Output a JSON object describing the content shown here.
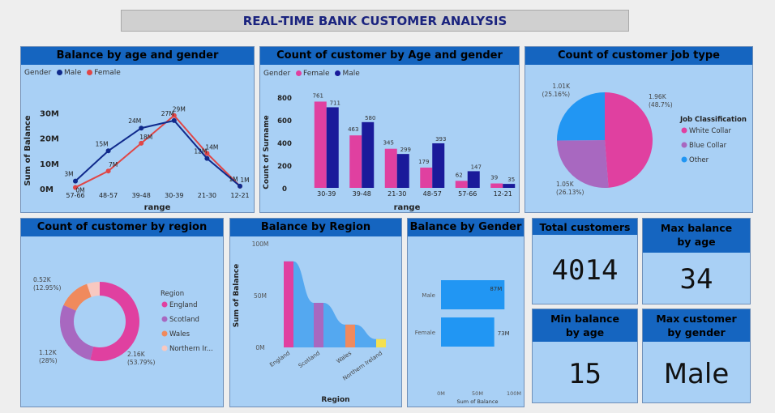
{
  "page": {
    "title": "REAL-TIME BANK CUSTOMER ANALYSIS"
  },
  "colors": {
    "male_line": "#102a8c",
    "female_line": "#e04646",
    "female_bar": "#e040a0",
    "male_bar": "#1a1a9a",
    "white_collar": "#e040a0",
    "blue_collar": "#a868c0",
    "other": "#2196f3",
    "england": "#e040a0",
    "scotland": "#a868c0",
    "wales": "#f08a5d",
    "northern_ireland": "#f8c8c0",
    "header": "#1565c0",
    "panel": "#a9d0f5"
  },
  "chart_data": [
    {
      "id": "balance_age_gender",
      "type": "line",
      "title": "Balance by age and gender",
      "legend_title": "Gender",
      "xlabel": "range",
      "ylabel": "Sum of Balance",
      "categories": [
        "57-66",
        "48-57",
        "39-48",
        "30-39",
        "21-30",
        "12-21"
      ],
      "yticks": [
        "30M",
        "20M",
        "10M",
        "0M"
      ],
      "ylim": [
        0,
        33
      ],
      "series": [
        {
          "name": "Male",
          "values": [
            3,
            15,
            24,
            27,
            12,
            1
          ],
          "labels": [
            "3M",
            "15M",
            "24M",
            "27M",
            "12M",
            "1M"
          ]
        },
        {
          "name": "Female",
          "values": [
            0.5,
            7,
            18,
            29,
            14,
            1
          ],
          "labels": [
            "0M",
            "7M",
            "18M",
            "29M",
            "14M",
            "1M"
          ]
        }
      ]
    },
    {
      "id": "count_age_gender",
      "type": "bar",
      "title": "Count of customer by Age and gender",
      "legend_title": "Gender",
      "xlabel": "range",
      "ylabel": "Count of Surname",
      "categories": [
        "30-39",
        "39-48",
        "21-30",
        "48-57",
        "57-66",
        "12-21"
      ],
      "yticks": [
        "800",
        "600",
        "400",
        "200",
        "0"
      ],
      "ylim": [
        0,
        800
      ],
      "series": [
        {
          "name": "Female",
          "values": [
            761,
            463,
            345,
            179,
            62,
            39
          ]
        },
        {
          "name": "Male",
          "values": [
            711,
            580,
            299,
            393,
            147,
            35
          ]
        }
      ]
    },
    {
      "id": "job_type",
      "type": "pie",
      "title": "Count of customer job type",
      "legend_title": "Job Classification",
      "slices": [
        {
          "name": "White Collar",
          "value": 1.96,
          "label": "1.96K",
          "pct": "(48.7%)"
        },
        {
          "name": "Blue Collar",
          "value": 1.05,
          "label": "1.05K",
          "pct": "(26.13%)"
        },
        {
          "name": "Other",
          "value": 1.01,
          "label": "1.01K",
          "pct": "(25.16%)"
        }
      ]
    },
    {
      "id": "region_donut",
      "type": "pie",
      "title": "Count of customer by region",
      "legend_title": "Region",
      "slices": [
        {
          "name": "England",
          "value": 2.16,
          "label": "2.16K",
          "pct": "(53.79%)"
        },
        {
          "name": "Scotland",
          "value": 1.12,
          "label": "1.12K",
          "pct": "(28%)"
        },
        {
          "name": "Wales",
          "value": 0.52,
          "label": "0.52K",
          "pct": "(12.95%)"
        },
        {
          "name": "Northern Ir...",
          "value": 0.21,
          "label": "",
          "pct": ""
        }
      ]
    },
    {
      "id": "balance_region",
      "type": "area",
      "title": "Balance by Region",
      "xlabel": "Region",
      "ylabel": "Sum of Balance",
      "categories": [
        "England",
        "Scotland",
        "Wales",
        "Northern Ireland"
      ],
      "yticks": [
        "100M",
        "50M",
        "0M"
      ],
      "ylim": [
        0,
        100
      ],
      "values": [
        83,
        43,
        22,
        8
      ]
    },
    {
      "id": "balance_gender",
      "type": "bar",
      "orientation": "horizontal",
      "title": "Balance by Gender",
      "xlabel": "Sum of Balance",
      "categories": [
        "Male",
        "Female"
      ],
      "values": [
        87,
        73
      ],
      "labels": [
        "87M",
        "73M"
      ],
      "xticks": [
        "0M",
        "50M",
        "100M"
      ],
      "xlim": [
        0,
        100
      ]
    }
  ],
  "kpis": {
    "total_customers": {
      "label": "Total customers",
      "value": "4014"
    },
    "max_balance_age": {
      "label": "Max balance by age",
      "value": "34"
    },
    "min_balance_age": {
      "label": "Min balance by age",
      "value": "15"
    },
    "max_customer_gender": {
      "label": "Max customer by gender",
      "value": "Male"
    }
  }
}
